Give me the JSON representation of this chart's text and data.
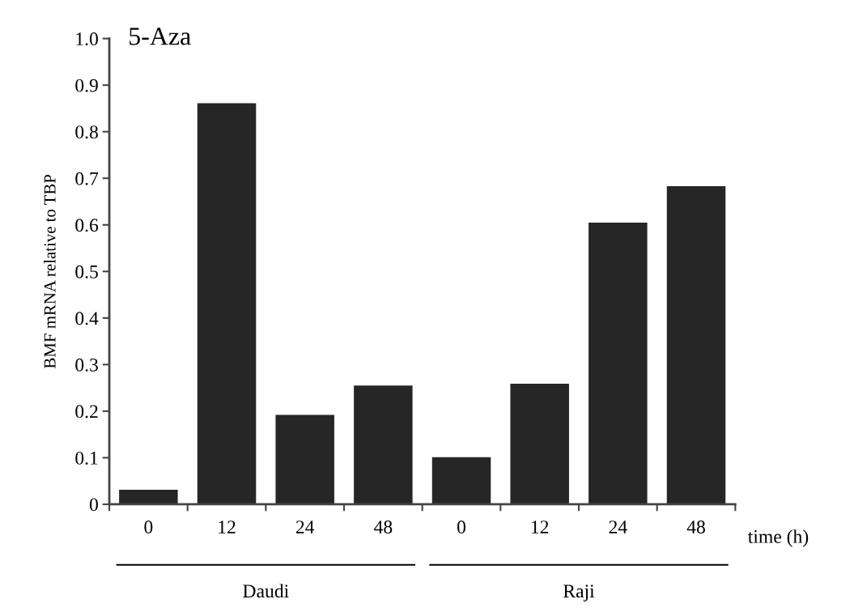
{
  "chart_data": {
    "type": "bar",
    "title": "5-Aza",
    "ylabel": "BMF mRNA relative to TBP",
    "categories": [
      "0",
      "12",
      "24",
      "48",
      "0",
      "12",
      "24",
      "48"
    ],
    "values": [
      0.031,
      0.861,
      0.192,
      0.255,
      0.101,
      0.259,
      0.605,
      0.683
    ],
    "color": "#262626",
    "ylim": [
      0,
      1.0
    ],
    "yticks": [
      {
        "value": 0,
        "label": "0"
      },
      0.1,
      0.2,
      0.3,
      0.4,
      0.5,
      0.6,
      0.7,
      0.8,
      0.9,
      {
        "value": 1.0,
        "label": "1.0"
      }
    ],
    "annotations": [
      "time (h)",
      "Daudi",
      "Raji"
    ],
    "grid": false,
    "legend": false
  }
}
